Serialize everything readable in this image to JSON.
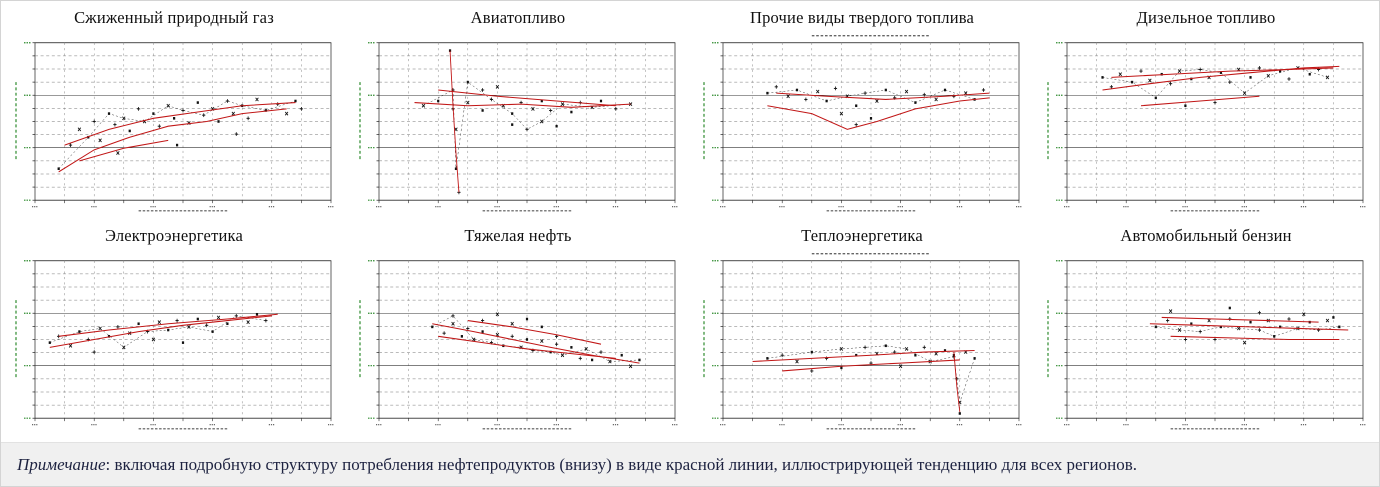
{
  "note": {
    "label": "Примечание",
    "text": ": включая подробную структуру потребления нефтепродуктов (внизу) в виде красной линии, иллюстрирующей тенденцию для всех регионов."
  },
  "palette": {
    "trend_red": "#c11616",
    "marker_black": "#111111",
    "axis_green": "#2e8b2e",
    "note_bg": "#f0f0f0"
  },
  "chart_data": [
    {
      "type": "scatter",
      "title": "Сжиженный природный газ",
      "trend_color": "#c11616",
      "axis_text_legible": false,
      "subtitle_smudge": false,
      "points": [
        8,
        20,
        12,
        35,
        15,
        45,
        18,
        40,
        20,
        50,
        22,
        38,
        25,
        55,
        27,
        48,
        30,
        52,
        32,
        44,
        35,
        58,
        37,
        50,
        40,
        55,
        42,
        47,
        45,
        60,
        47,
        52,
        50,
        57,
        52,
        49,
        55,
        62,
        57,
        54,
        60,
        58,
        62,
        50,
        65,
        63,
        67,
        55,
        70,
        60,
        72,
        52,
        75,
        64,
        78,
        57,
        82,
        61,
        85,
        55,
        88,
        63,
        90,
        58,
        28,
        30,
        48,
        35,
        68,
        42
      ],
      "trends": [
        [
          8,
          18,
          20,
          32,
          32,
          40,
          45,
          47,
          58,
          50,
          70,
          55,
          85,
          58
        ],
        [
          10,
          35,
          25,
          45,
          40,
          52,
          55,
          56,
          70,
          60,
          88,
          62
        ],
        [
          15,
          25,
          30,
          33,
          45,
          38
        ]
      ]
    },
    {
      "type": "scatter",
      "title": "Авиатопливо",
      "trend_color": "#c11616",
      "axis_text_legible": false,
      "subtitle_smudge": false,
      "points": [
        24,
        95,
        25,
        70,
        26,
        45,
        26,
        20,
        27,
        5,
        15,
        60,
        20,
        63,
        25,
        58,
        30,
        62,
        35,
        57,
        38,
        64,
        42,
        60,
        45,
        55,
        48,
        62,
        52,
        58,
        55,
        63,
        58,
        57,
        62,
        61,
        65,
        56,
        68,
        62,
        72,
        59,
        75,
        63,
        80,
        58,
        85,
        61,
        45,
        48,
        50,
        45,
        55,
        50,
        60,
        47,
        35,
        70,
        40,
        72,
        30,
        75
      ],
      "trends": [
        [
          24,
          95,
          25,
          60,
          26,
          30,
          27,
          5
        ],
        [
          12,
          62,
          30,
          60,
          48,
          61,
          65,
          59,
          85,
          61
        ],
        [
          20,
          70,
          40,
          66,
          60,
          63,
          80,
          60
        ]
      ]
    },
    {
      "type": "scatter",
      "title": "Прочие виды твердого топлива",
      "trend_color": "#c11616",
      "axis_text_legible": false,
      "subtitle_smudge": true,
      "points": [
        15,
        68,
        18,
        72,
        22,
        66,
        25,
        70,
        28,
        64,
        32,
        69,
        35,
        63,
        38,
        71,
        42,
        66,
        45,
        60,
        48,
        68,
        52,
        63,
        55,
        70,
        58,
        65,
        62,
        69,
        65,
        62,
        68,
        67,
        72,
        64,
        75,
        70,
        78,
        66,
        82,
        68,
        85,
        64,
        88,
        70,
        40,
        55,
        50,
        52,
        45,
        48
      ],
      "trends": [
        [
          15,
          60,
          30,
          55,
          42,
          45,
          52,
          50,
          65,
          58,
          80,
          63,
          90,
          65
        ],
        [
          18,
          68,
          35,
          66,
          55,
          64,
          75,
          66,
          90,
          68
        ]
      ]
    },
    {
      "type": "scatter",
      "title": "Дизельное топливо",
      "trend_color": "#c11616",
      "axis_text_legible": false,
      "subtitle_smudge": false,
      "points": [
        12,
        78,
        15,
        72,
        18,
        80,
        22,
        75,
        25,
        82,
        28,
        76,
        32,
        80,
        35,
        74,
        38,
        82,
        42,
        77,
        45,
        83,
        48,
        78,
        52,
        81,
        55,
        75,
        58,
        83,
        62,
        78,
        65,
        84,
        68,
        79,
        72,
        82,
        75,
        77,
        78,
        84,
        82,
        80,
        85,
        83,
        88,
        78,
        30,
        65,
        50,
        62,
        60,
        68,
        40,
        60
      ],
      "trends": [
        [
          12,
          70,
          28,
          74,
          45,
          78,
          62,
          81,
          80,
          84,
          92,
          85
        ],
        [
          15,
          78,
          35,
          80,
          55,
          82,
          75,
          83,
          90,
          84
        ],
        [
          25,
          60,
          45,
          63,
          65,
          66
        ]
      ]
    },
    {
      "type": "scatter",
      "title": "Электроэнергетика",
      "trend_color": "#c11616",
      "axis_text_legible": false,
      "subtitle_smudge": false,
      "points": [
        5,
        48,
        8,
        52,
        12,
        46,
        15,
        55,
        18,
        50,
        22,
        57,
        25,
        52,
        28,
        58,
        32,
        54,
        35,
        60,
        38,
        55,
        42,
        61,
        45,
        56,
        48,
        62,
        52,
        58,
        55,
        63,
        58,
        59,
        62,
        64,
        65,
        60,
        68,
        65,
        72,
        61,
        75,
        66,
        78,
        62,
        30,
        45,
        50,
        48,
        20,
        42,
        40,
        50,
        60,
        55
      ],
      "trends": [
        [
          5,
          45,
          20,
          50,
          35,
          55,
          50,
          59,
          65,
          62,
          80,
          65
        ],
        [
          8,
          52,
          25,
          56,
          45,
          60,
          65,
          63,
          82,
          66
        ]
      ]
    },
    {
      "type": "scatter",
      "title": "Тяжелая нефть",
      "trend_color": "#c11616",
      "axis_text_legible": false,
      "subtitle_smudge": false,
      "points": [
        18,
        58,
        22,
        54,
        25,
        60,
        28,
        52,
        30,
        57,
        32,
        50,
        35,
        55,
        38,
        48,
        40,
        53,
        42,
        46,
        45,
        52,
        48,
        45,
        50,
        50,
        52,
        43,
        55,
        49,
        58,
        42,
        60,
        47,
        62,
        40,
        65,
        45,
        68,
        38,
        70,
        44,
        72,
        37,
        75,
        42,
        78,
        36,
        82,
        40,
        35,
        62,
        45,
        60,
        55,
        58,
        25,
        65,
        40,
        66,
        50,
        63,
        60,
        52,
        85,
        33,
        88,
        37
      ],
      "trends": [
        [
          18,
          60,
          32,
          55,
          45,
          50,
          58,
          45,
          72,
          40,
          88,
          35
        ],
        [
          20,
          52,
          35,
          48,
          50,
          44,
          65,
          41,
          80,
          38
        ],
        [
          30,
          62,
          45,
          58,
          60,
          53,
          75,
          47
        ]
      ]
    },
    {
      "type": "scatter",
      "title": "Теплоэнергетика",
      "trend_color": "#c11616",
      "axis_text_legible": false,
      "subtitle_smudge": true,
      "points": [
        15,
        38,
        20,
        40,
        25,
        36,
        30,
        42,
        35,
        38,
        40,
        44,
        45,
        40,
        48,
        45,
        52,
        41,
        55,
        46,
        58,
        42,
        62,
        44,
        65,
        40,
        68,
        45,
        72,
        41,
        75,
        43,
        78,
        39,
        82,
        42,
        85,
        38,
        50,
        35,
        60,
        33,
        40,
        32,
        30,
        30,
        70,
        36,
        78,
        40,
        79,
        25,
        80,
        10,
        80,
        3
      ],
      "trends": [
        [
          10,
          36,
          30,
          38,
          50,
          40,
          68,
          42,
          85,
          43
        ],
        [
          78,
          42,
          79,
          20,
          80,
          4
        ],
        [
          20,
          30,
          40,
          33,
          60,
          35,
          80,
          37
        ]
      ]
    },
    {
      "type": "scatter",
      "title": "Автомобильный бензин",
      "trend_color": "#c11616",
      "axis_text_legible": false,
      "subtitle_smudge": false,
      "points": [
        30,
        58,
        34,
        62,
        38,
        56,
        42,
        60,
        45,
        55,
        48,
        62,
        52,
        58,
        55,
        63,
        58,
        57,
        62,
        61,
        65,
        56,
        68,
        62,
        72,
        58,
        75,
        63,
        78,
        57,
        82,
        61,
        85,
        56,
        88,
        62,
        92,
        58,
        50,
        50,
        60,
        48,
        70,
        52,
        40,
        50,
        35,
        68,
        55,
        70,
        65,
        67,
        80,
        66,
        90,
        64
      ],
      "trends": [
        [
          28,
          60,
          45,
          59,
          62,
          58,
          78,
          57,
          95,
          56
        ],
        [
          32,
          64,
          50,
          63,
          68,
          62,
          85,
          61
        ],
        [
          35,
          52,
          55,
          51,
          75,
          50,
          92,
          50
        ]
      ]
    }
  ]
}
